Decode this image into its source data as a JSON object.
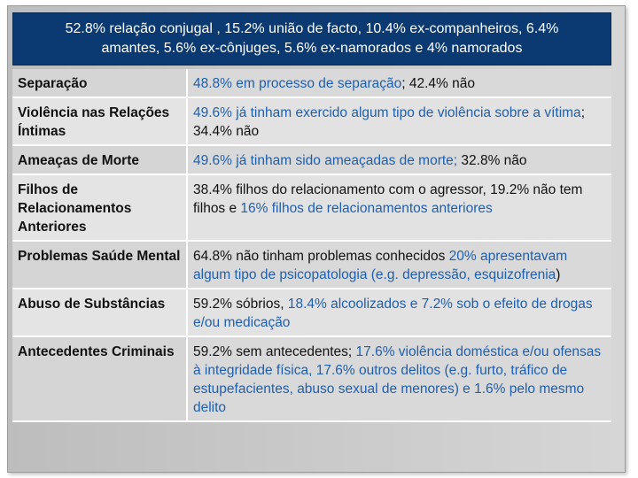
{
  "header": {
    "line1": "52.8% relação conjugal , 15.2% união de facto, 10.4% ex-companheiros, 6.4%",
    "line2": "amantes, 5.6% ex-cônjuges, 5.6% ex-namorados e 4% namorados"
  },
  "colors": {
    "header_bg": "#0b3a72",
    "highlight": "#1f5fae"
  },
  "rows": [
    {
      "label": "Separação",
      "parts": [
        {
          "text": "48.8% em processo de separação",
          "hl": true
        },
        {
          "text": ";  42.4% não",
          "hl": false
        }
      ]
    },
    {
      "label": "Violência nas Relações Íntimas",
      "parts": [
        {
          "text": "49.6% já tinham exercido algum tipo de violência sobre a vítima",
          "hl": true
        },
        {
          "text": "; 34.4% não",
          "hl": false
        }
      ]
    },
    {
      "label": "Ameaças de Morte",
      "parts": [
        {
          "text": "49.6% já tinham sido ameaçadas de morte; ",
          "hl": true
        },
        {
          "text": "32.8% não",
          "hl": false
        }
      ]
    },
    {
      "label": "Filhos de Relacionamentos Anteriores",
      "parts": [
        {
          "text": "38.4% filhos do relacionamento com o agressor, 19.2% não tem filhos e ",
          "hl": false
        },
        {
          "text": "16% filhos de relacionamentos anteriores",
          "hl": true
        }
      ]
    },
    {
      "label": "Problemas Saúde Mental",
      "parts": [
        {
          "text": "64.8% não tinham problemas conhecidos ",
          "hl": false
        },
        {
          "text": "20% apresentavam algum tipo de psicopatologia (e.g. depressão, esquizofrenia",
          "hl": true
        },
        {
          "text": ")",
          "hl": false
        }
      ]
    },
    {
      "label": "Abuso de Substâncias",
      "parts": [
        {
          "text": "59.2% sóbrios, ",
          "hl": false
        },
        {
          "text": "18.4% alcoolizados e 7.2% sob o efeito de drogas e/ou medicação",
          "hl": true
        }
      ]
    },
    {
      "label": "Antecedentes Criminais",
      "parts": [
        {
          "text": "59.2% sem antecedentes; ",
          "hl": false
        },
        {
          "text": "17.6% violência doméstica e/ou ofensas à integridade física, 17.6% outros delitos (e.g. furto, tráfico de estupefacientes, abuso sexual de menores) e 1.6% pelo mesmo delito",
          "hl": true
        }
      ]
    }
  ]
}
